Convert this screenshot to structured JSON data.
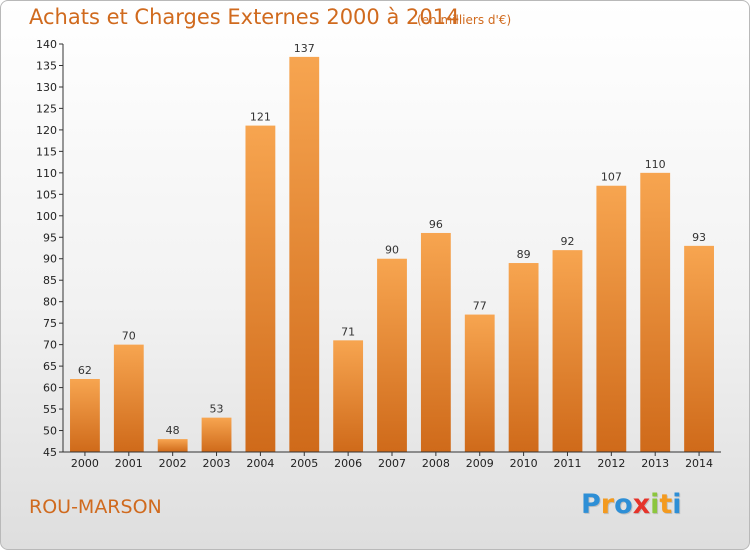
{
  "header": {
    "title": "Achats et Charges Externes 2000 à 2014",
    "subtitle": "(en milliers d'€)"
  },
  "footer": {
    "city": "ROU-MARSON",
    "logo_text": [
      "P",
      "r",
      "o",
      "x",
      "i",
      "t",
      "i"
    ],
    "logo_colors": [
      "#2e8fd6",
      "#f39a1f",
      "#2e8fd6",
      "#e5332a",
      "#8cc63e",
      "#f39a1f",
      "#2e8fd6"
    ]
  },
  "colors": {
    "bar_top": "#f7a550",
    "bar_bottom": "#cf6a1a",
    "axis": "#333333",
    "grid": "#dddddd",
    "accent": "#d06a1e"
  },
  "chart_data": {
    "type": "bar",
    "title": "Achats et Charges Externes 2000 à 2014",
    "subtitle": "(en milliers d'€)",
    "categories": [
      "2000",
      "2001",
      "2002",
      "2003",
      "2004",
      "2005",
      "2006",
      "2007",
      "2008",
      "2009",
      "2010",
      "2011",
      "2012",
      "2013",
      "2014"
    ],
    "values": [
      62,
      70,
      48,
      53,
      121,
      137,
      71,
      90,
      96,
      77,
      89,
      92,
      107,
      110,
      93
    ],
    "xlabel": "",
    "ylabel": "",
    "ylim": [
      45,
      140
    ],
    "yticks": [
      45,
      50,
      55,
      60,
      65,
      70,
      75,
      80,
      85,
      90,
      95,
      100,
      105,
      110,
      115,
      120,
      125,
      130,
      135,
      140
    ],
    "grid": false,
    "legend": "none"
  }
}
